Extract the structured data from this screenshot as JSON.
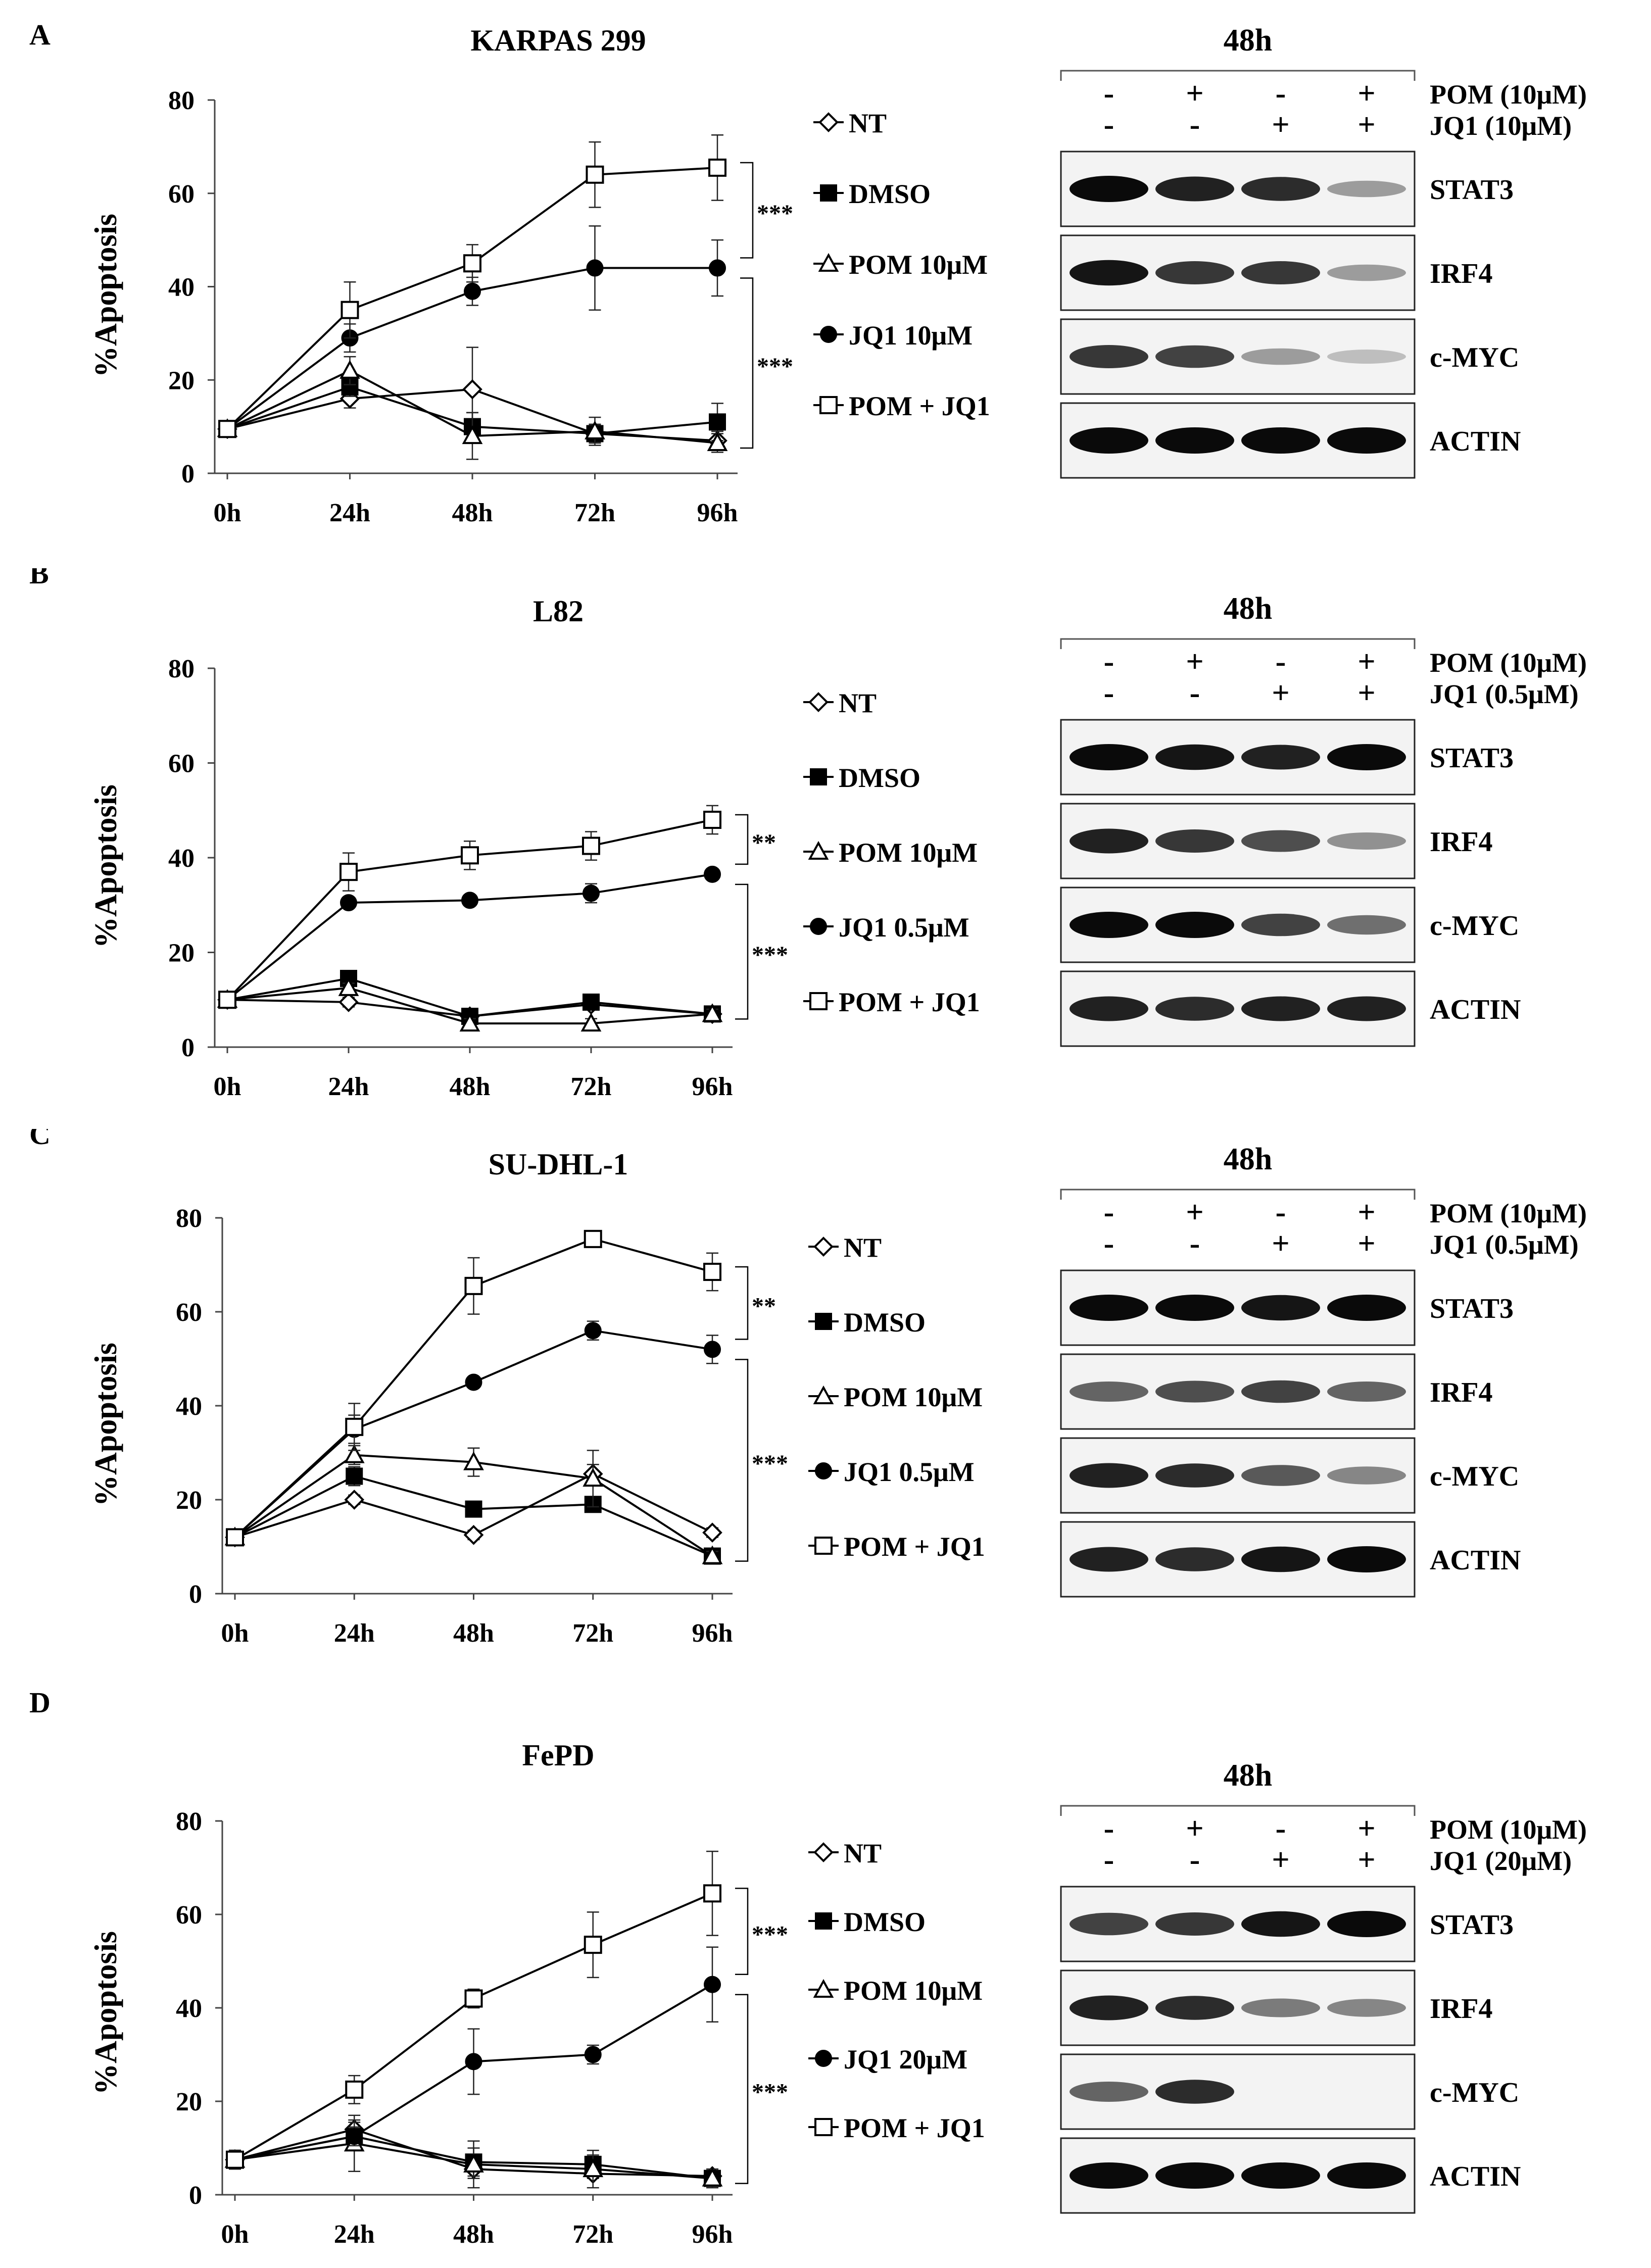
{
  "chart_data": [
    {
      "type": "line",
      "panel": "A",
      "title": "KARPAS 299",
      "xlabel": "",
      "ylabel": "%Apoptosis",
      "categories": [
        "0h",
        "24h",
        "48h",
        "72h",
        "96h"
      ],
      "ylim": [
        0,
        80
      ],
      "yticks": [
        "0",
        "20",
        "40",
        "60",
        "80"
      ],
      "series": [
        {
          "name": "NT",
          "marker": "diamond-open",
          "values": [
            9.5,
            16,
            18,
            8.5,
            7
          ],
          "errors": [
            1,
            2,
            9,
            2,
            2
          ]
        },
        {
          "name": "DMSO",
          "marker": "square-filled",
          "values": [
            9.5,
            18.5,
            10,
            8.5,
            11
          ],
          "errors": [
            1,
            2,
            3,
            2,
            4
          ]
        },
        {
          "name": "POM 10μM",
          "marker": "triangle-open",
          "values": [
            9.5,
            22,
            8,
            9,
            6.5
          ],
          "errors": [
            1,
            3,
            5,
            3,
            2
          ]
        },
        {
          "name": "JQ1 10μM",
          "marker": "circle-filled",
          "values": [
            9.5,
            29,
            39,
            44,
            44
          ],
          "errors": [
            1,
            3,
            3,
            9,
            6
          ]
        },
        {
          "name": "POM + JQ1",
          "marker": "square-open",
          "values": [
            9.5,
            35,
            45,
            64,
            65.5
          ],
          "errors": [
            1,
            6,
            4,
            7,
            7
          ]
        }
      ],
      "significance": [
        "***",
        "***"
      ]
    },
    {
      "type": "line",
      "panel": "B",
      "title": "L82",
      "xlabel": "",
      "ylabel": "%Apoptosis",
      "categories": [
        "0h",
        "24h",
        "48h",
        "72h",
        "96h"
      ],
      "ylim": [
        0,
        80
      ],
      "yticks": [
        "0",
        "20",
        "40",
        "60",
        "80"
      ],
      "series": [
        {
          "name": "NT",
          "marker": "diamond-open",
          "values": [
            10,
            9.5,
            6.5,
            9,
            7
          ],
          "errors": [
            0.5,
            1,
            1,
            1,
            1
          ]
        },
        {
          "name": "DMSO",
          "marker": "square-filled",
          "values": [
            10,
            14.5,
            6.5,
            9.5,
            7
          ],
          "errors": [
            0.5,
            1,
            1,
            1,
            1
          ]
        },
        {
          "name": "POM 10μM",
          "marker": "triangle-open",
          "values": [
            10,
            12.5,
            5,
            5,
            7
          ],
          "errors": [
            0.5,
            1,
            1,
            1,
            1
          ]
        },
        {
          "name": "JQ1 0.5μM",
          "marker": "circle-filled",
          "values": [
            10,
            30.5,
            31,
            32.5,
            36.5
          ],
          "errors": [
            0.5,
            1,
            1,
            2,
            1
          ]
        },
        {
          "name": "POM + JQ1",
          "marker": "square-open",
          "values": [
            10,
            37,
            40.5,
            42.5,
            48
          ],
          "errors": [
            0.5,
            4,
            3,
            3,
            3
          ]
        }
      ],
      "significance": [
        "**",
        "***"
      ]
    },
    {
      "type": "line",
      "panel": "C",
      "title": "SU-DHL-1",
      "xlabel": "",
      "ylabel": "%Apoptosis",
      "categories": [
        "0h",
        "24h",
        "48h",
        "72h",
        "96h"
      ],
      "ylim": [
        0,
        80
      ],
      "yticks": [
        "0",
        "20",
        "40",
        "60",
        "80"
      ],
      "series": [
        {
          "name": "NT",
          "marker": "diamond-open",
          "values": [
            12,
            20,
            12.5,
            25.5,
            13
          ],
          "errors": [
            0.5,
            1,
            1,
            2,
            1
          ]
        },
        {
          "name": "DMSO",
          "marker": "square-filled",
          "values": [
            12,
            25,
            18,
            19,
            8
          ],
          "errors": [
            0.5,
            2,
            1,
            1,
            1
          ]
        },
        {
          "name": "POM 10μM",
          "marker": "triangle-open",
          "values": [
            12,
            29.5,
            28,
            24.5,
            8
          ],
          "errors": [
            0.5,
            2,
            3,
            6,
            1
          ]
        },
        {
          "name": "JQ1 0.5μM",
          "marker": "circle-filled",
          "values": [
            12,
            35,
            45,
            56,
            52
          ],
          "errors": [
            0.5,
            3,
            1,
            2,
            3
          ]
        },
        {
          "name": "POM + JQ1",
          "marker": "square-open",
          "values": [
            12,
            35.5,
            65.5,
            75.5,
            68.5
          ],
          "errors": [
            0.5,
            5,
            6,
            1,
            4
          ]
        }
      ],
      "significance": [
        "**",
        "***"
      ]
    },
    {
      "type": "line",
      "panel": "D",
      "title": "FePD",
      "xlabel": "",
      "ylabel": "%Apoptosis",
      "categories": [
        "0h",
        "24h",
        "48h",
        "72h",
        "96h"
      ],
      "ylim": [
        0,
        80
      ],
      "yticks": [
        "0",
        "20",
        "40",
        "60",
        "80"
      ],
      "series": [
        {
          "name": "NT",
          "marker": "diamond-open",
          "values": [
            7.5,
            14,
            5.5,
            4.5,
            4
          ],
          "errors": [
            2,
            2,
            2,
            1,
            1
          ]
        },
        {
          "name": "DMSO",
          "marker": "square-filled",
          "values": [
            7.5,
            12.5,
            7,
            6.5,
            3.5
          ],
          "errors": [
            2,
            3,
            3,
            2,
            1
          ]
        },
        {
          "name": "POM 10μM",
          "marker": "triangle-open",
          "values": [
            7.5,
            11,
            6.5,
            5.5,
            3.5
          ],
          "errors": [
            2,
            6,
            5,
            4,
            2
          ]
        },
        {
          "name": "JQ1 20μM",
          "marker": "circle-filled",
          "values": [
            7.5,
            12.5,
            28.5,
            30,
            45
          ],
          "errors": [
            2,
            2,
            7,
            2,
            8
          ]
        },
        {
          "name": "POM + JQ1",
          "marker": "square-open",
          "values": [
            7.5,
            22.5,
            42,
            53.5,
            64.5
          ],
          "errors": [
            2,
            3,
            2,
            7,
            9
          ]
        }
      ],
      "significance": [
        "***",
        "***"
      ]
    }
  ],
  "western_blots": [
    {
      "panel": "A",
      "time": "48h",
      "rows": [
        {
          "label": "POM (10μM)",
          "signs": [
            "-",
            "+",
            "-",
            "+"
          ]
        },
        {
          "label": "JQ1 (10μM)",
          "signs": [
            "-",
            "-",
            "+",
            "+"
          ]
        }
      ],
      "blots": [
        {
          "label": "STAT3",
          "intensity": [
            1.0,
            0.9,
            0.85,
            0.35
          ]
        },
        {
          "label": "IRF4",
          "intensity": [
            0.95,
            0.8,
            0.8,
            0.35
          ]
        },
        {
          "label": "c-MYC",
          "intensity": [
            0.8,
            0.75,
            0.35,
            0.2
          ]
        },
        {
          "label": "ACTIN",
          "intensity": [
            1.0,
            1.0,
            1.0,
            1.0
          ]
        }
      ]
    },
    {
      "panel": "B",
      "time": "48h",
      "rows": [
        {
          "label": "POM (10μM)",
          "signs": [
            "-",
            "+",
            "-",
            "+"
          ]
        },
        {
          "label": "JQ1 (0.5μM)",
          "signs": [
            "-",
            "-",
            "+",
            "+"
          ]
        }
      ],
      "blots": [
        {
          "label": "STAT3",
          "intensity": [
            1.0,
            0.95,
            0.9,
            1.0
          ]
        },
        {
          "label": "IRF4",
          "intensity": [
            0.9,
            0.8,
            0.7,
            0.4
          ]
        },
        {
          "label": "c-MYC",
          "intensity": [
            1.0,
            1.0,
            0.75,
            0.55
          ]
        },
        {
          "label": "ACTIN",
          "intensity": [
            0.9,
            0.85,
            0.9,
            0.9
          ]
        }
      ]
    },
    {
      "panel": "C",
      "time": "48h",
      "rows": [
        {
          "label": "POM (10μM)",
          "signs": [
            "-",
            "+",
            "-",
            "+"
          ]
        },
        {
          "label": "JQ1 (0.5μM)",
          "signs": [
            "-",
            "-",
            "+",
            "+"
          ]
        }
      ],
      "blots": [
        {
          "label": "STAT3",
          "intensity": [
            1.0,
            1.0,
            0.95,
            1.0
          ]
        },
        {
          "label": "IRF4",
          "intensity": [
            0.6,
            0.7,
            0.75,
            0.6
          ]
        },
        {
          "label": "c-MYC",
          "intensity": [
            0.9,
            0.85,
            0.65,
            0.45
          ]
        },
        {
          "label": "ACTIN",
          "intensity": [
            0.9,
            0.85,
            0.95,
            1.0
          ]
        }
      ]
    },
    {
      "panel": "D",
      "time": "48h",
      "rows": [
        {
          "label": "POM (10μM)",
          "signs": [
            "-",
            "+",
            "-",
            "+"
          ]
        },
        {
          "label": "JQ1 (20μM)",
          "signs": [
            "-",
            "-",
            "+",
            "+"
          ]
        }
      ],
      "blots": [
        {
          "label": "STAT3",
          "intensity": [
            0.75,
            0.8,
            0.95,
            1.0
          ]
        },
        {
          "label": "IRF4",
          "intensity": [
            0.9,
            0.85,
            0.5,
            0.45
          ]
        },
        {
          "label": "c-MYC",
          "intensity": [
            0.6,
            0.85,
            0.0,
            0.0
          ]
        },
        {
          "label": "ACTIN",
          "intensity": [
            1.0,
            1.0,
            1.0,
            1.0
          ]
        }
      ]
    }
  ]
}
